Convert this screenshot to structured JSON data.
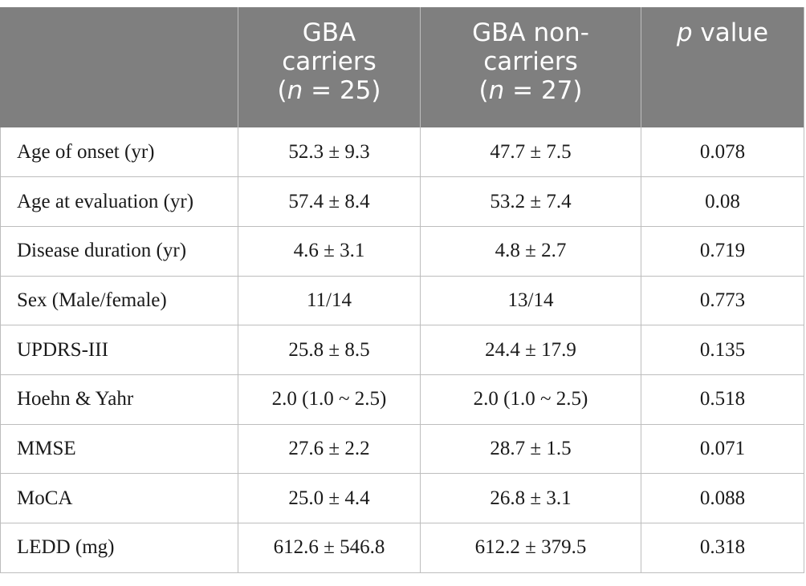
{
  "table": {
    "headers": [
      {
        "lines": []
      },
      {
        "lines": [
          "GBA",
          "carriers"
        ],
        "count_prefix": "(",
        "count_italic": "n",
        "count_rest": " = 25)"
      },
      {
        "lines": [
          "GBA non-",
          "carriers"
        ],
        "count_prefix": "(",
        "count_italic": "n",
        "count_rest": " = 27)"
      },
      {
        "p_italic": "p",
        "p_rest": " value"
      }
    ],
    "rows": [
      {
        "label": "Age of onset (yr)",
        "carriers": "52.3 ± 9.3",
        "non_carriers": "47.7 ± 7.5",
        "p": "0.078"
      },
      {
        "label": "Age at evaluation (yr)",
        "carriers": "57.4 ± 8.4",
        "non_carriers": "53.2 ± 7.4",
        "p": "0.08"
      },
      {
        "label": "Disease duration (yr)",
        "carriers": "4.6 ± 3.1",
        "non_carriers": "4.8 ± 2.7",
        "p": "0.719"
      },
      {
        "label": "Sex (Male/female)",
        "carriers": "11/14",
        "non_carriers": "13/14",
        "p": "0.773"
      },
      {
        "label": "UPDRS-III",
        "carriers": "25.8 ± 8.5",
        "non_carriers": "24.4 ± 17.9",
        "p": "0.135"
      },
      {
        "label": "Hoehn & Yahr",
        "carriers": "2.0 (1.0 ~ 2.5)",
        "non_carriers": "2.0 (1.0 ~ 2.5)",
        "p": "0.518"
      },
      {
        "label": "MMSE",
        "carriers": "27.6 ± 2.2",
        "non_carriers": "28.7 ± 1.5",
        "p": "0.071"
      },
      {
        "label": "MoCA",
        "carriers": "25.0 ± 4.4",
        "non_carriers": "26.8 ± 3.1",
        "p": "0.088"
      },
      {
        "label": "LEDD (mg)",
        "carriers": "612.6 ± 546.8",
        "non_carriers": "612.2 ± 379.5",
        "p": "0.318"
      }
    ]
  },
  "colors": {
    "header_bg": "#7f7f7f",
    "header_text": "#ffffff",
    "border": "#bdbdbd",
    "body_text": "#1a1a1a"
  }
}
